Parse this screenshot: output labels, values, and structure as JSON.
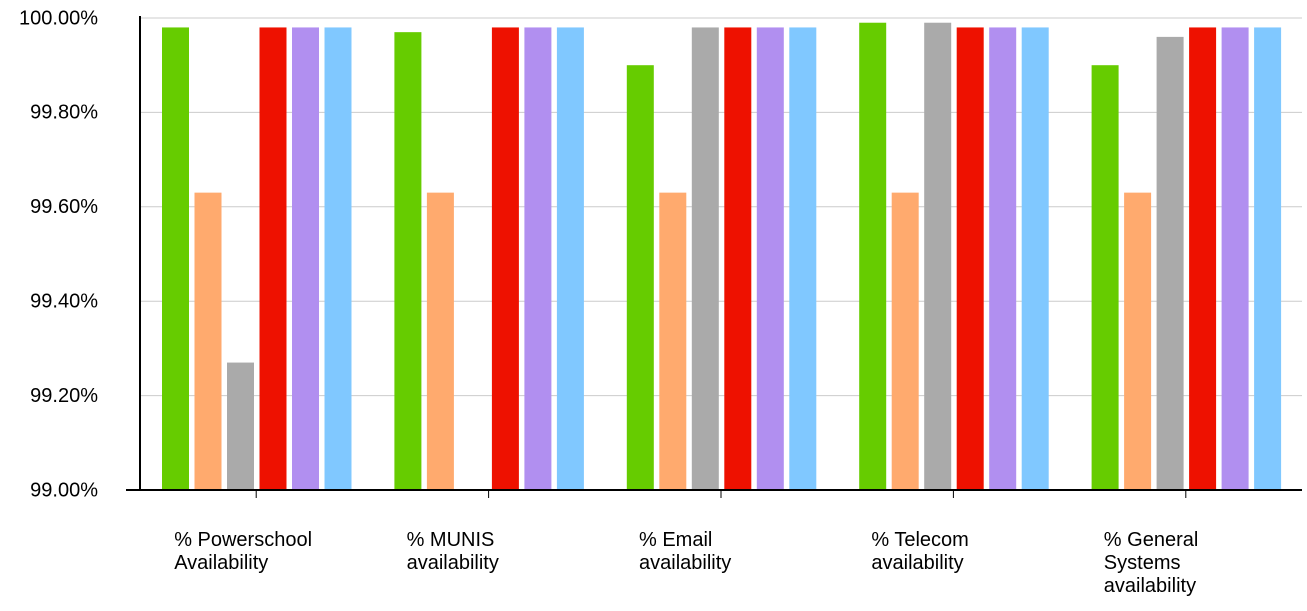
{
  "chart_data": {
    "type": "bar",
    "title": "",
    "xlabel": "",
    "ylabel": "",
    "ylim": [
      99.0,
      100.0
    ],
    "y_ticks": [
      "99.00%",
      "99.20%",
      "99.40%",
      "99.60%",
      "99.80%",
      "100.00%"
    ],
    "y_tick_values": [
      99.0,
      99.2,
      99.4,
      99.6,
      99.8,
      100.0
    ],
    "grid": true,
    "legend": "none",
    "categories": [
      [
        "% Powerschool",
        "Availability"
      ],
      [
        "% MUNIS",
        "availability"
      ],
      [
        "% Email",
        "availability"
      ],
      [
        "% Telecom",
        "availability"
      ],
      [
        "% General",
        "Systems",
        "availability"
      ]
    ],
    "series": [
      {
        "color": "#66cc00",
        "values": [
          99.98,
          99.97,
          99.9,
          99.99,
          99.9
        ]
      },
      {
        "color": "#ffaa6e",
        "values": [
          99.63,
          99.63,
          99.63,
          99.63,
          99.63
        ]
      },
      {
        "color": "#aaaaaa",
        "values": [
          99.27,
          null,
          99.98,
          99.99,
          99.96
        ]
      },
      {
        "color": "#ee1100",
        "values": [
          99.98,
          99.98,
          99.98,
          99.98,
          99.98
        ]
      },
      {
        "color": "#b18ff0",
        "values": [
          99.98,
          99.98,
          99.98,
          99.98,
          99.98
        ]
      },
      {
        "color": "#80c8ff",
        "values": [
          99.98,
          99.98,
          99.98,
          99.98,
          99.98
        ]
      }
    ],
    "colors": {
      "grid": "#cccccc",
      "axis": "#000000"
    }
  }
}
